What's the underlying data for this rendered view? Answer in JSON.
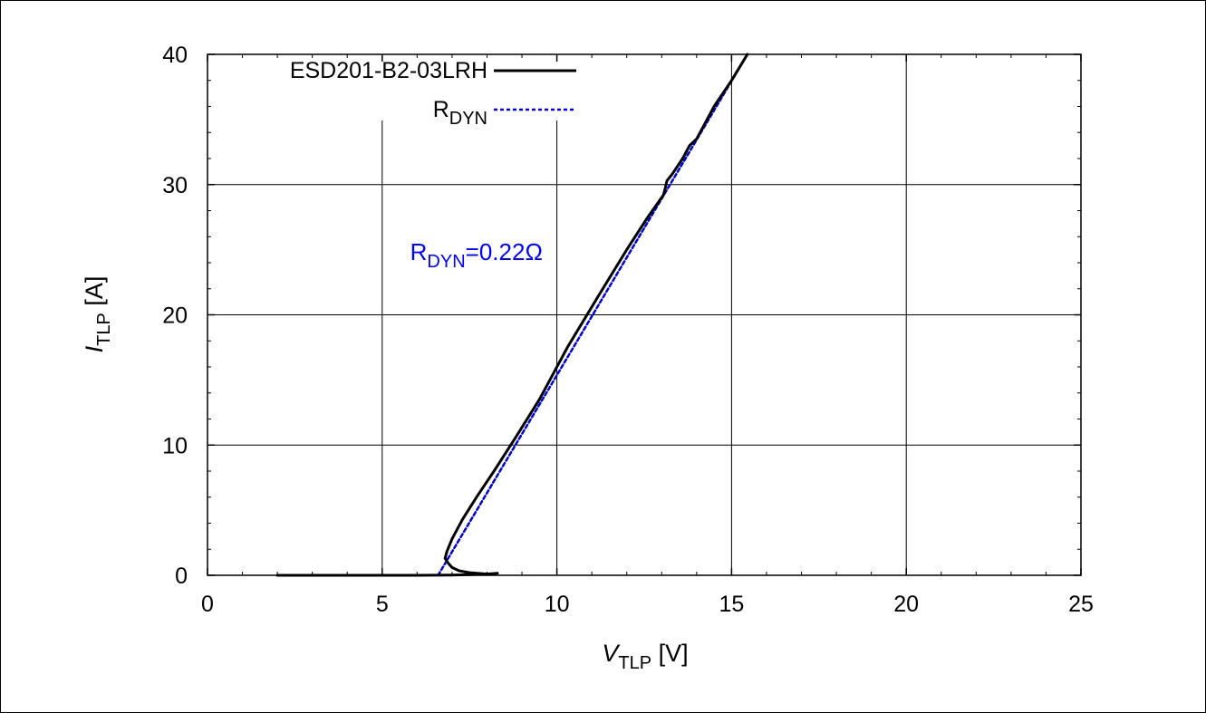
{
  "chart_data": {
    "type": "line",
    "xlabel": {
      "main": "V",
      "sub": "TLP",
      "unit": " [V]"
    },
    "ylabel": {
      "main": "I",
      "sub": "TLP",
      "unit": " [A]"
    },
    "xlim": [
      0,
      25
    ],
    "ylim": [
      0,
      40
    ],
    "x_ticks": [
      0,
      5,
      10,
      15,
      20,
      25
    ],
    "y_ticks": [
      0,
      10,
      20,
      30,
      40
    ],
    "grid": true,
    "legend_position": "top-left",
    "series": [
      {
        "name": "ESD201-B2-03LRH",
        "color": "#000000",
        "style": "solid",
        "x": [
          2.0,
          4.0,
          6.0,
          7.0,
          7.5,
          8.0,
          8.3,
          8.0,
          7.5,
          7.2,
          7.0,
          6.9,
          6.85,
          6.8,
          6.85,
          7.0,
          7.3,
          7.7,
          8.2,
          8.8,
          9.5,
          10.3,
          11.2,
          12.0,
          12.6,
          13.05,
          13.1,
          13.15,
          13.3,
          13.6,
          13.8,
          14.0,
          14.5,
          15.0,
          15.45
        ],
        "y": [
          0.0,
          0.0,
          0.0,
          0.02,
          0.05,
          0.1,
          0.15,
          0.1,
          0.2,
          0.35,
          0.6,
          0.9,
          1.1,
          1.3,
          1.8,
          2.8,
          4.3,
          6.0,
          8.0,
          10.5,
          13.5,
          17.5,
          21.5,
          25.0,
          27.5,
          29.2,
          29.7,
          30.3,
          30.8,
          32.0,
          33.0,
          33.5,
          36.0,
          38.0,
          40.0
        ]
      },
      {
        "name": "R",
        "name_sub": "DYN",
        "color": "#0000cc",
        "style": "dashed",
        "x": [
          6.6,
          15.45
        ],
        "y": [
          0.0,
          40.0
        ]
      }
    ],
    "annotations": [
      {
        "main": "R",
        "sub": "DYN",
        "rest": "=0.22Ω",
        "x": 5.8,
        "y": 24.2,
        "color": "#0000ff"
      }
    ]
  }
}
